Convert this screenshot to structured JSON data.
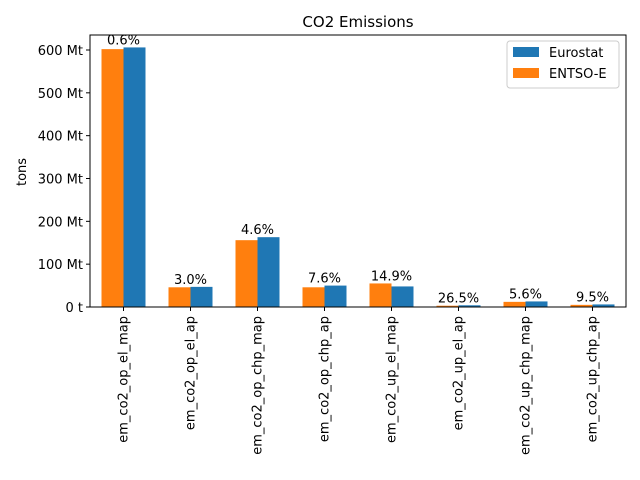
{
  "chart_data": {
    "type": "bar",
    "title": "CO2 Emissions",
    "xlabel": "",
    "ylabel": "tons",
    "ylim": [
      0,
      635
    ],
    "yticks": [
      0,
      100,
      200,
      300,
      400,
      500,
      600
    ],
    "ytick_labels": [
      "0 t",
      "100 Mt",
      "200 Mt",
      "300 Mt",
      "400 Mt",
      "500 Mt",
      "600 Mt"
    ],
    "categories": [
      "em_co2_op_el_map",
      "em_co2_op_el_ap",
      "em_co2_op_chp_map",
      "em_co2_op_chp_ap",
      "em_co2_up_el_map",
      "em_co2_up_el_ap",
      "em_co2_up_chp_map",
      "em_co2_up_chp_ap"
    ],
    "series": [
      {
        "name": "ENTSO-E",
        "color": "#ff7f0e",
        "values": [
          602,
          46,
          156,
          46,
          55,
          3,
          12,
          5
        ]
      },
      {
        "name": "Eurostat",
        "color": "#1f77b4",
        "values": [
          606,
          47,
          163,
          50,
          48,
          4,
          13,
          6
        ]
      }
    ],
    "data_labels": [
      "0.6%",
      "3.0%",
      "4.6%",
      "7.6%",
      "14.9%",
      "26.5%",
      "5.6%",
      "9.5%"
    ],
    "legend_order": [
      "Eurostat",
      "ENTSO-E"
    ],
    "legend": "top-right",
    "grid": false
  }
}
